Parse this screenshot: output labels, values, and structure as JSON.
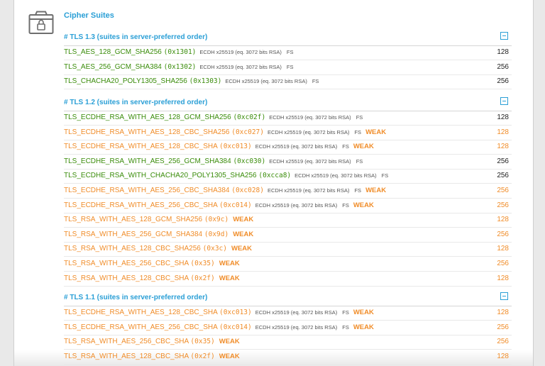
{
  "section": {
    "title": "Cipher Suites"
  },
  "groups": [
    {
      "label": "# TLS 1.3 (suites in server-preferred order)",
      "rows": [
        {
          "name": "TLS_AES_128_GCM_SHA256",
          "code": "(0x1301)",
          "kex": "ECDH x25519 (eq. 3072 bits RSA)",
          "fs": "FS",
          "weak": "",
          "bits": "128",
          "status": "strong"
        },
        {
          "name": "TLS_AES_256_GCM_SHA384",
          "code": "(0x1302)",
          "kex": "ECDH x25519 (eq. 3072 bits RSA)",
          "fs": "FS",
          "weak": "",
          "bits": "256",
          "status": "strong"
        },
        {
          "name": "TLS_CHACHA20_POLY1305_SHA256",
          "code": "(0x1303)",
          "kex": "ECDH x25519 (eq. 3072 bits RSA)",
          "fs": "FS",
          "weak": "",
          "bits": "256",
          "status": "strong"
        }
      ]
    },
    {
      "label": "# TLS 1.2 (suites in server-preferred order)",
      "rows": [
        {
          "name": "TLS_ECDHE_RSA_WITH_AES_128_GCM_SHA256",
          "code": "(0xc02f)",
          "kex": "ECDH x25519 (eq. 3072 bits RSA)",
          "fs": "FS",
          "weak": "",
          "bits": "128",
          "status": "strong"
        },
        {
          "name": "TLS_ECDHE_RSA_WITH_AES_128_CBC_SHA256",
          "code": "(0xc027)",
          "kex": "ECDH x25519 (eq. 3072 bits RSA)",
          "fs": "FS",
          "weak": "WEAK",
          "bits": "128",
          "status": "weak"
        },
        {
          "name": "TLS_ECDHE_RSA_WITH_AES_128_CBC_SHA",
          "code": "(0xc013)",
          "kex": "ECDH x25519 (eq. 3072 bits RSA)",
          "fs": "FS",
          "weak": "WEAK",
          "bits": "128",
          "status": "weak"
        },
        {
          "name": "TLS_ECDHE_RSA_WITH_AES_256_GCM_SHA384",
          "code": "(0xc030)",
          "kex": "ECDH x25519 (eq. 3072 bits RSA)",
          "fs": "FS",
          "weak": "",
          "bits": "256",
          "status": "strong"
        },
        {
          "name": "TLS_ECDHE_RSA_WITH_CHACHA20_POLY1305_SHA256",
          "code": "(0xcca8)",
          "kex": "ECDH x25519 (eq. 3072 bits RSA)",
          "fs": "FS",
          "weak": "",
          "bits": "256",
          "status": "strong"
        },
        {
          "name": "TLS_ECDHE_RSA_WITH_AES_256_CBC_SHA384",
          "code": "(0xc028)",
          "kex": "ECDH x25519 (eq. 3072 bits RSA)",
          "fs": "FS",
          "weak": "WEAK",
          "bits": "256",
          "status": "weak"
        },
        {
          "name": "TLS_ECDHE_RSA_WITH_AES_256_CBC_SHA",
          "code": "(0xc014)",
          "kex": "ECDH x25519 (eq. 3072 bits RSA)",
          "fs": "FS",
          "weak": "WEAK",
          "bits": "256",
          "status": "weak"
        },
        {
          "name": "TLS_RSA_WITH_AES_128_GCM_SHA256",
          "code": "(0x9c)",
          "kex": "",
          "fs": "",
          "weak": "WEAK",
          "bits": "128",
          "status": "weak"
        },
        {
          "name": "TLS_RSA_WITH_AES_256_GCM_SHA384",
          "code": "(0x9d)",
          "kex": "",
          "fs": "",
          "weak": "WEAK",
          "bits": "256",
          "status": "weak"
        },
        {
          "name": "TLS_RSA_WITH_AES_128_CBC_SHA256",
          "code": "(0x3c)",
          "kex": "",
          "fs": "",
          "weak": "WEAK",
          "bits": "128",
          "status": "weak"
        },
        {
          "name": "TLS_RSA_WITH_AES_256_CBC_SHA",
          "code": "(0x35)",
          "kex": "",
          "fs": "",
          "weak": "WEAK",
          "bits": "256",
          "status": "weak"
        },
        {
          "name": "TLS_RSA_WITH_AES_128_CBC_SHA",
          "code": "(0x2f)",
          "kex": "",
          "fs": "",
          "weak": "WEAK",
          "bits": "128",
          "status": "weak"
        }
      ]
    },
    {
      "label": "# TLS 1.1 (suites in server-preferred order)",
      "rows": [
        {
          "name": "TLS_ECDHE_RSA_WITH_AES_128_CBC_SHA",
          "code": "(0xc013)",
          "kex": "ECDH x25519 (eq. 3072 bits RSA)",
          "fs": "FS",
          "weak": "WEAK",
          "bits": "128",
          "status": "weak"
        },
        {
          "name": "TLS_ECDHE_RSA_WITH_AES_256_CBC_SHA",
          "code": "(0xc014)",
          "kex": "ECDH x25519 (eq. 3072 bits RSA)",
          "fs": "FS",
          "weak": "WEAK",
          "bits": "256",
          "status": "weak"
        },
        {
          "name": "TLS_RSA_WITH_AES_256_CBC_SHA",
          "code": "(0x35)",
          "kex": "",
          "fs": "",
          "weak": "WEAK",
          "bits": "256",
          "status": "weak"
        },
        {
          "name": "TLS_RSA_WITH_AES_128_CBC_SHA",
          "code": "(0x2f)",
          "kex": "",
          "fs": "",
          "weak": "WEAK",
          "bits": "128",
          "status": "weak"
        }
      ]
    }
  ],
  "icons": {
    "section": "lock-icon",
    "collapse": "collapse-minus-icon"
  },
  "colors": {
    "heading": "#2a9fd6",
    "strong": "#3a8c0a",
    "weak": "#f08c28",
    "text": "#222222"
  }
}
